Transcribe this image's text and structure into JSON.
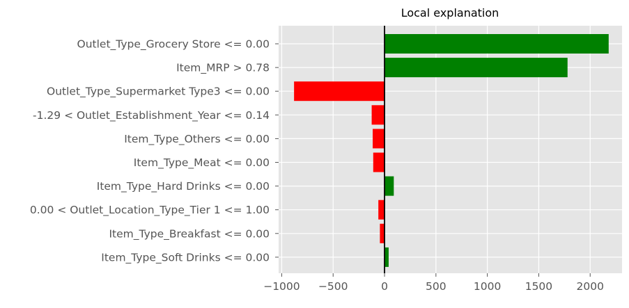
{
  "chart_data": {
    "type": "bar",
    "orientation": "horizontal",
    "title": "Local explanation",
    "xlabel": "",
    "ylabel": "",
    "xlim": [
      -1030,
      2310
    ],
    "x_ticks": [
      -1000,
      -500,
      0,
      500,
      1000,
      1500,
      2000
    ],
    "x_tick_labels": [
      "−1000",
      "−500",
      "0",
      "500",
      "1000",
      "1500",
      "2000"
    ],
    "grid": true,
    "categories": [
      "Outlet_Type_Grocery Store <= 0.00",
      "Item_MRP > 0.78",
      "Outlet_Type_Supermarket Type3 <= 0.00",
      "-1.29 < Outlet_Establishment_Year <= 0.14",
      "Item_Type_Others <= 0.00",
      "Item_Type_Meat <= 0.00",
      "Item_Type_Hard Drinks <= 0.00",
      "0.00 < Outlet_Location_Type_Tier 1 <= 1.00",
      "Item_Type_Breakfast <= 0.00",
      "Item_Type_Soft Drinks <= 0.00"
    ],
    "values": [
      2180,
      1780,
      -880,
      -125,
      -115,
      -110,
      90,
      -60,
      -45,
      40
    ],
    "positive_color": "#008000",
    "negative_color": "#ff0000",
    "background_color": "#e5e5e5"
  }
}
